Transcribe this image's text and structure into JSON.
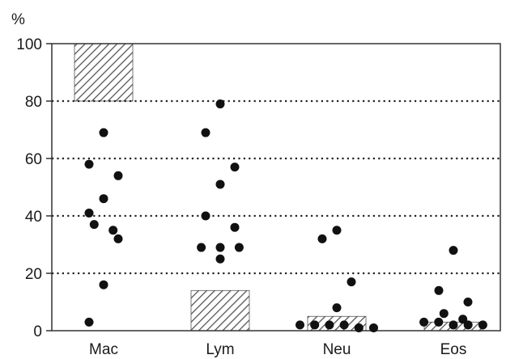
{
  "chart_data": {
    "type": "scatter",
    "title": "",
    "xlabel": "",
    "ylabel": "%",
    "ylim": [
      0,
      100
    ],
    "yticks": [
      0,
      20,
      40,
      60,
      80,
      100
    ],
    "grid": "horizontal-dotted",
    "categories": [
      "Mac",
      "Lym",
      "Neu",
      "Eos"
    ],
    "points": [
      {
        "category": "Mac",
        "y": [
          69,
          58,
          54,
          46,
          41,
          37,
          35,
          32,
          16,
          3
        ]
      },
      {
        "category": "Lym",
        "y": [
          79,
          69,
          57,
          51,
          40,
          36,
          29,
          29,
          29,
          25
        ]
      },
      {
        "category": "Neu",
        "y": [
          35,
          32,
          17,
          8,
          2,
          2,
          2,
          1,
          1,
          2
        ]
      },
      {
        "category": "Eos",
        "y": [
          28,
          14,
          10,
          6,
          3,
          3,
          2,
          2,
          4,
          2
        ]
      }
    ],
    "reference_ranges": [
      {
        "category": "Mac",
        "low": 80,
        "high": 100
      },
      {
        "category": "Lym",
        "low": 0,
        "high": 14
      },
      {
        "category": "Neu",
        "low": 0,
        "high": 5
      },
      {
        "category": "Eos",
        "low": 0,
        "high": 3
      }
    ],
    "colors": {
      "points": "#111111",
      "hatch": "#555555",
      "axis": "#333333"
    }
  }
}
